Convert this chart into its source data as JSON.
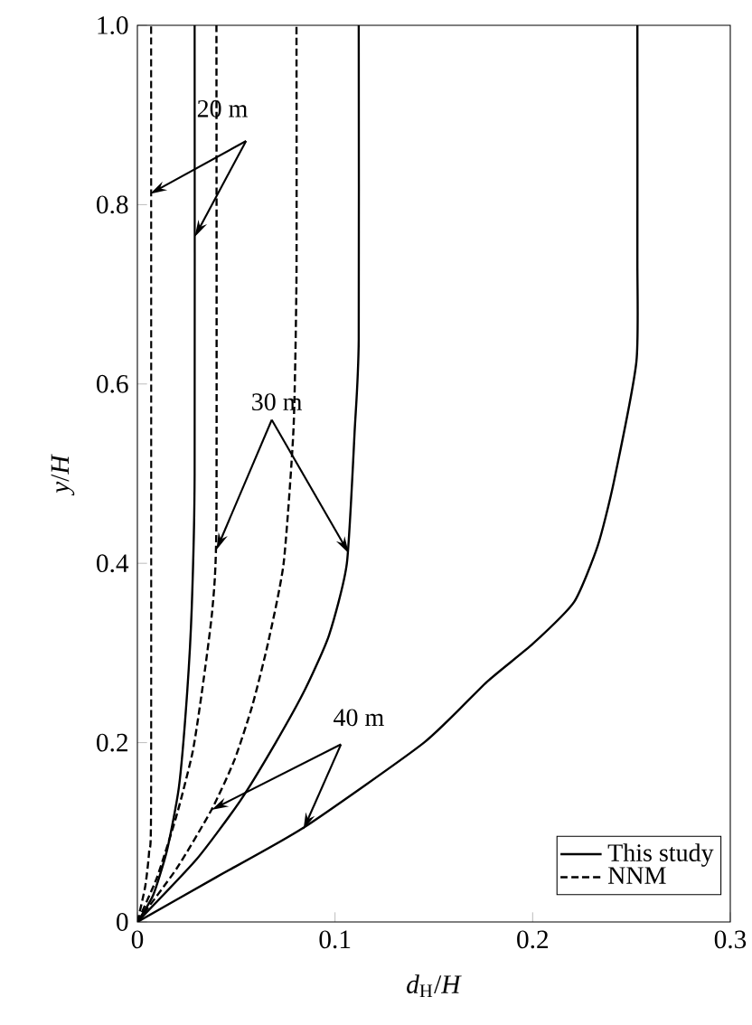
{
  "chart_data": {
    "type": "line",
    "xlabel": "*d*$_{H}$/*H*",
    "ylabel": "*y*/*H*",
    "xlim": [
      0,
      0.3
    ],
    "ylim": [
      0,
      1.0
    ],
    "xticks": [
      0,
      0.1,
      0.2,
      0.3
    ],
    "yticks": [
      0,
      0.2,
      0.4,
      0.6,
      0.8,
      {
        "value": 1.0,
        "label": "1.0"
      }
    ],
    "grid": false,
    "legend": "bottom right",
    "marker": "none",
    "annotations": [
      {
        "text": "20 m",
        "x": 0.0064,
        "y": 0.812
      },
      {
        "text": "30 m",
        "x": 0.107,
        "y": 0.411
      },
      {
        "text": "40 m",
        "x": 0.084,
        "y": 0.103
      }
    ],
    "series": [
      {
        "name": "This study",
        "color": "#000000",
        "line_style": "solid",
        "x": [
          0,
          0.008,
          0.015,
          0.021,
          0.025,
          0.0275,
          0.029,
          0.029
        ],
        "values": [
          0,
          0.03,
          0.08,
          0.15,
          0.25,
          0.35,
          0.5,
          1.0
        ]
      },
      {
        "color": "#000000",
        "line_style": "solid",
        "x": [
          0,
          0.03,
          0.052,
          0.07,
          0.085,
          0.097,
          0.106,
          0.11,
          0.112,
          0.112
        ],
        "values": [
          0,
          0.07,
          0.135,
          0.2,
          0.26,
          0.32,
          0.4,
          0.55,
          0.65,
          1.0
        ]
      },
      {
        "color": "#000000",
        "line_style": "solid",
        "x": [
          0,
          0.04,
          0.084,
          0.145,
          0.177,
          0.2,
          0.221,
          0.233,
          0.241,
          0.2525,
          0.253,
          0.253
        ],
        "values": [
          0,
          0.05,
          0.105,
          0.2,
          0.268,
          0.31,
          0.357,
          0.42,
          0.49,
          0.625,
          0.74,
          1.0
        ]
      },
      {
        "name": "NNM",
        "color": "#000000",
        "line_style": "dashed",
        "x": [
          0,
          0.004,
          0.006,
          0.007,
          0.007
        ],
        "values": [
          0,
          0.04,
          0.08,
          0.15,
          1.0
        ]
      },
      {
        "color": "#000000",
        "line_style": "dashed",
        "x": [
          0,
          0.01,
          0.02,
          0.028,
          0.033,
          0.038,
          0.04,
          0.04
        ],
        "values": [
          0,
          0.05,
          0.12,
          0.19,
          0.262,
          0.35,
          0.45,
          1.0
        ]
      },
      {
        "color": "#000000",
        "line_style": "dashed",
        "x": [
          0,
          0.02,
          0.0375,
          0.049,
          0.058,
          0.066,
          0.074,
          0.079,
          0.0805,
          0.0805
        ],
        "values": [
          0,
          0.06,
          0.125,
          0.18,
          0.24,
          0.31,
          0.4,
          0.55,
          0.72,
          1.0
        ]
      }
    ]
  }
}
